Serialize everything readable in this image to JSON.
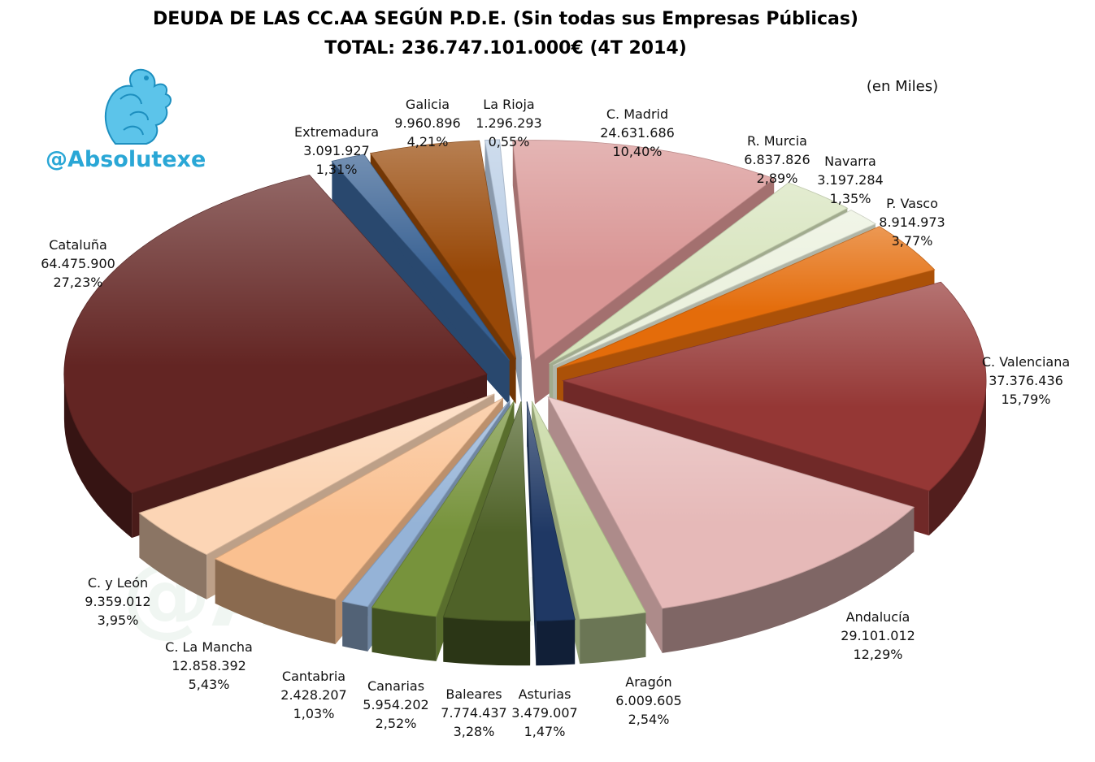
{
  "colors": {
    "title_text": "#000000",
    "brand": "#2aa7d6",
    "watermark": "#3f8a55"
  },
  "header": {
    "title_line1": "DEUDA DE LAS CC.AA SEGÚN P.D.E. (Sin todas sus Empresas Públicas)",
    "title_line2": "TOTAL: 236.747.101.000€ (4T 2014)",
    "units": "(en Miles)"
  },
  "brand": {
    "handle": "@Absolutexe",
    "logo_icon": "griffin-icon",
    "watermark_text": "@Absolutexe"
  },
  "chart_data": {
    "type": "pie",
    "title": "DEUDA DE LAS CC.AA SEGÚN P.D.E. (Sin todas sus Empresas Públicas)",
    "subtitle": "TOTAL: 236.747.101.000€ (4T 2014)",
    "units": "(en Miles)",
    "exploded": true,
    "three_d": true,
    "slices": [
      {
        "label": "C. Madrid",
        "value": 24631686,
        "value_text": "24.631.686",
        "percent": "10,40%",
        "color": "#d99594"
      },
      {
        "label": "R. Murcia",
        "value": 6837826,
        "value_text": "6.837.826",
        "percent": "2,89%",
        "color": "#d7e4bd"
      },
      {
        "label": "Navarra",
        "value": 3197284,
        "value_text": "3.197.284",
        "percent": "1,35%",
        "color": "#ebf1de"
      },
      {
        "label": "P. Vasco",
        "value": 8914973,
        "value_text": "8.914.973",
        "percent": "3,77%",
        "color": "#e46c0a"
      },
      {
        "label": "C. Valenciana",
        "value": 37376436,
        "value_text": "37.376.436",
        "percent": "15,79%",
        "color": "#953735"
      },
      {
        "label": "Andalucía",
        "value": 29101012,
        "value_text": "29.101.012",
        "percent": "12,29%",
        "color": "#e6b9b8"
      },
      {
        "label": "Aragón",
        "value": 6009605,
        "value_text": "6.009.605",
        "percent": "2,54%",
        "color": "#c3d69b"
      },
      {
        "label": "Asturias",
        "value": 3479007,
        "value_text": "3.479.007",
        "percent": "1,47%",
        "color": "#1f3864"
      },
      {
        "label": "Baleares",
        "value": 7774437,
        "value_text": "7.774.437",
        "percent": "3,28%",
        "color": "#4f6228"
      },
      {
        "label": "Canarias",
        "value": 5954202,
        "value_text": "5.954.202",
        "percent": "2,52%",
        "color": "#77933c"
      },
      {
        "label": "Cantabria",
        "value": 2428207,
        "value_text": "2.428.207",
        "percent": "1,03%",
        "color": "#95b3d7"
      },
      {
        "label": "C. La Mancha",
        "value": 12858392,
        "value_text": "12.858.392",
        "percent": "5,43%",
        "color": "#fac090"
      },
      {
        "label": "C. y León",
        "value": 9359012,
        "value_text": "9.359.012",
        "percent": "3,95%",
        "color": "#fcd5b5"
      },
      {
        "label": "Cataluña",
        "value": 64475900,
        "value_text": "64.475.900",
        "percent": "27,23%",
        "color": "#632523"
      },
      {
        "label": "Extremadura",
        "value": 3091927,
        "value_text": "3.091.927",
        "percent": "1,31%",
        "color": "#376092"
      },
      {
        "label": "Galicia",
        "value": 9960896,
        "value_text": "9.960.896",
        "percent": "4,21%",
        "color": "#984807"
      },
      {
        "label": "La Rioja",
        "value": 1296293,
        "value_text": "1.296.293",
        "percent": "0,55%",
        "color": "#b9cde5"
      }
    ]
  }
}
